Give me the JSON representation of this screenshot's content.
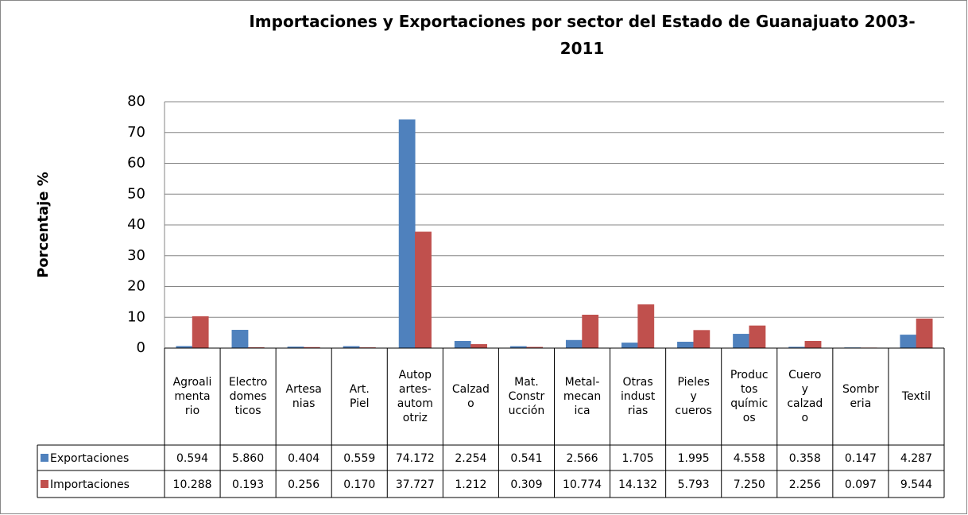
{
  "chart_data": {
    "type": "bar",
    "title": "Importaciones y Exportaciones por sector del Estado de Guanajuato 2003-\n2011",
    "y_label": "Porcentaje %",
    "categories": [
      "Agroali\nmenta\nrio",
      "Electro\ndomes\nticos",
      "Artesa\nnias",
      "Art.\nPiel",
      "Autop\nartes-\nautom\notriz",
      "Calzad\no",
      "Mat.\nConstr\nucción",
      "Metal-\nmecan\nica",
      "Otras\nindust\nrias",
      "Pieles\ny\ncueros",
      "Produc\ntos\nquímic\nos",
      "Cuero\ny\ncalzad\no",
      "Sombr\neria",
      "Textil"
    ],
    "series": [
      {
        "name": "Exportaciones",
        "color": "#4f81bd",
        "values": [
          0.594,
          5.86,
          0.404,
          0.559,
          74.172,
          2.254,
          0.541,
          2.566,
          1.705,
          1.995,
          4.558,
          0.358,
          0.147,
          4.287
        ],
        "value_labels": [
          "0.594",
          "5.860",
          "0.404",
          "0.559",
          "74.172",
          "2.254",
          "0.541",
          "2.566",
          "1.705",
          "1.995",
          "4.558",
          "0.358",
          "0.147",
          "4.287"
        ]
      },
      {
        "name": "Importaciones",
        "color": "#c0504d",
        "values": [
          10.288,
          0.193,
          0.256,
          0.17,
          37.727,
          1.212,
          0.309,
          10.774,
          14.132,
          5.793,
          7.25,
          2.256,
          0.097,
          9.544
        ],
        "value_labels": [
          "10.288",
          "0.193",
          "0.256",
          "0.170",
          "37.727",
          "1.212",
          "0.309",
          "10.774",
          "14.132",
          "5.793",
          "7.250",
          "2.256",
          "0.097",
          "9.544"
        ]
      }
    ],
    "ylim": [
      0,
      80
    ],
    "yticks": [
      0,
      10,
      20,
      30,
      40,
      50,
      60,
      70,
      80
    ],
    "grid": true
  }
}
